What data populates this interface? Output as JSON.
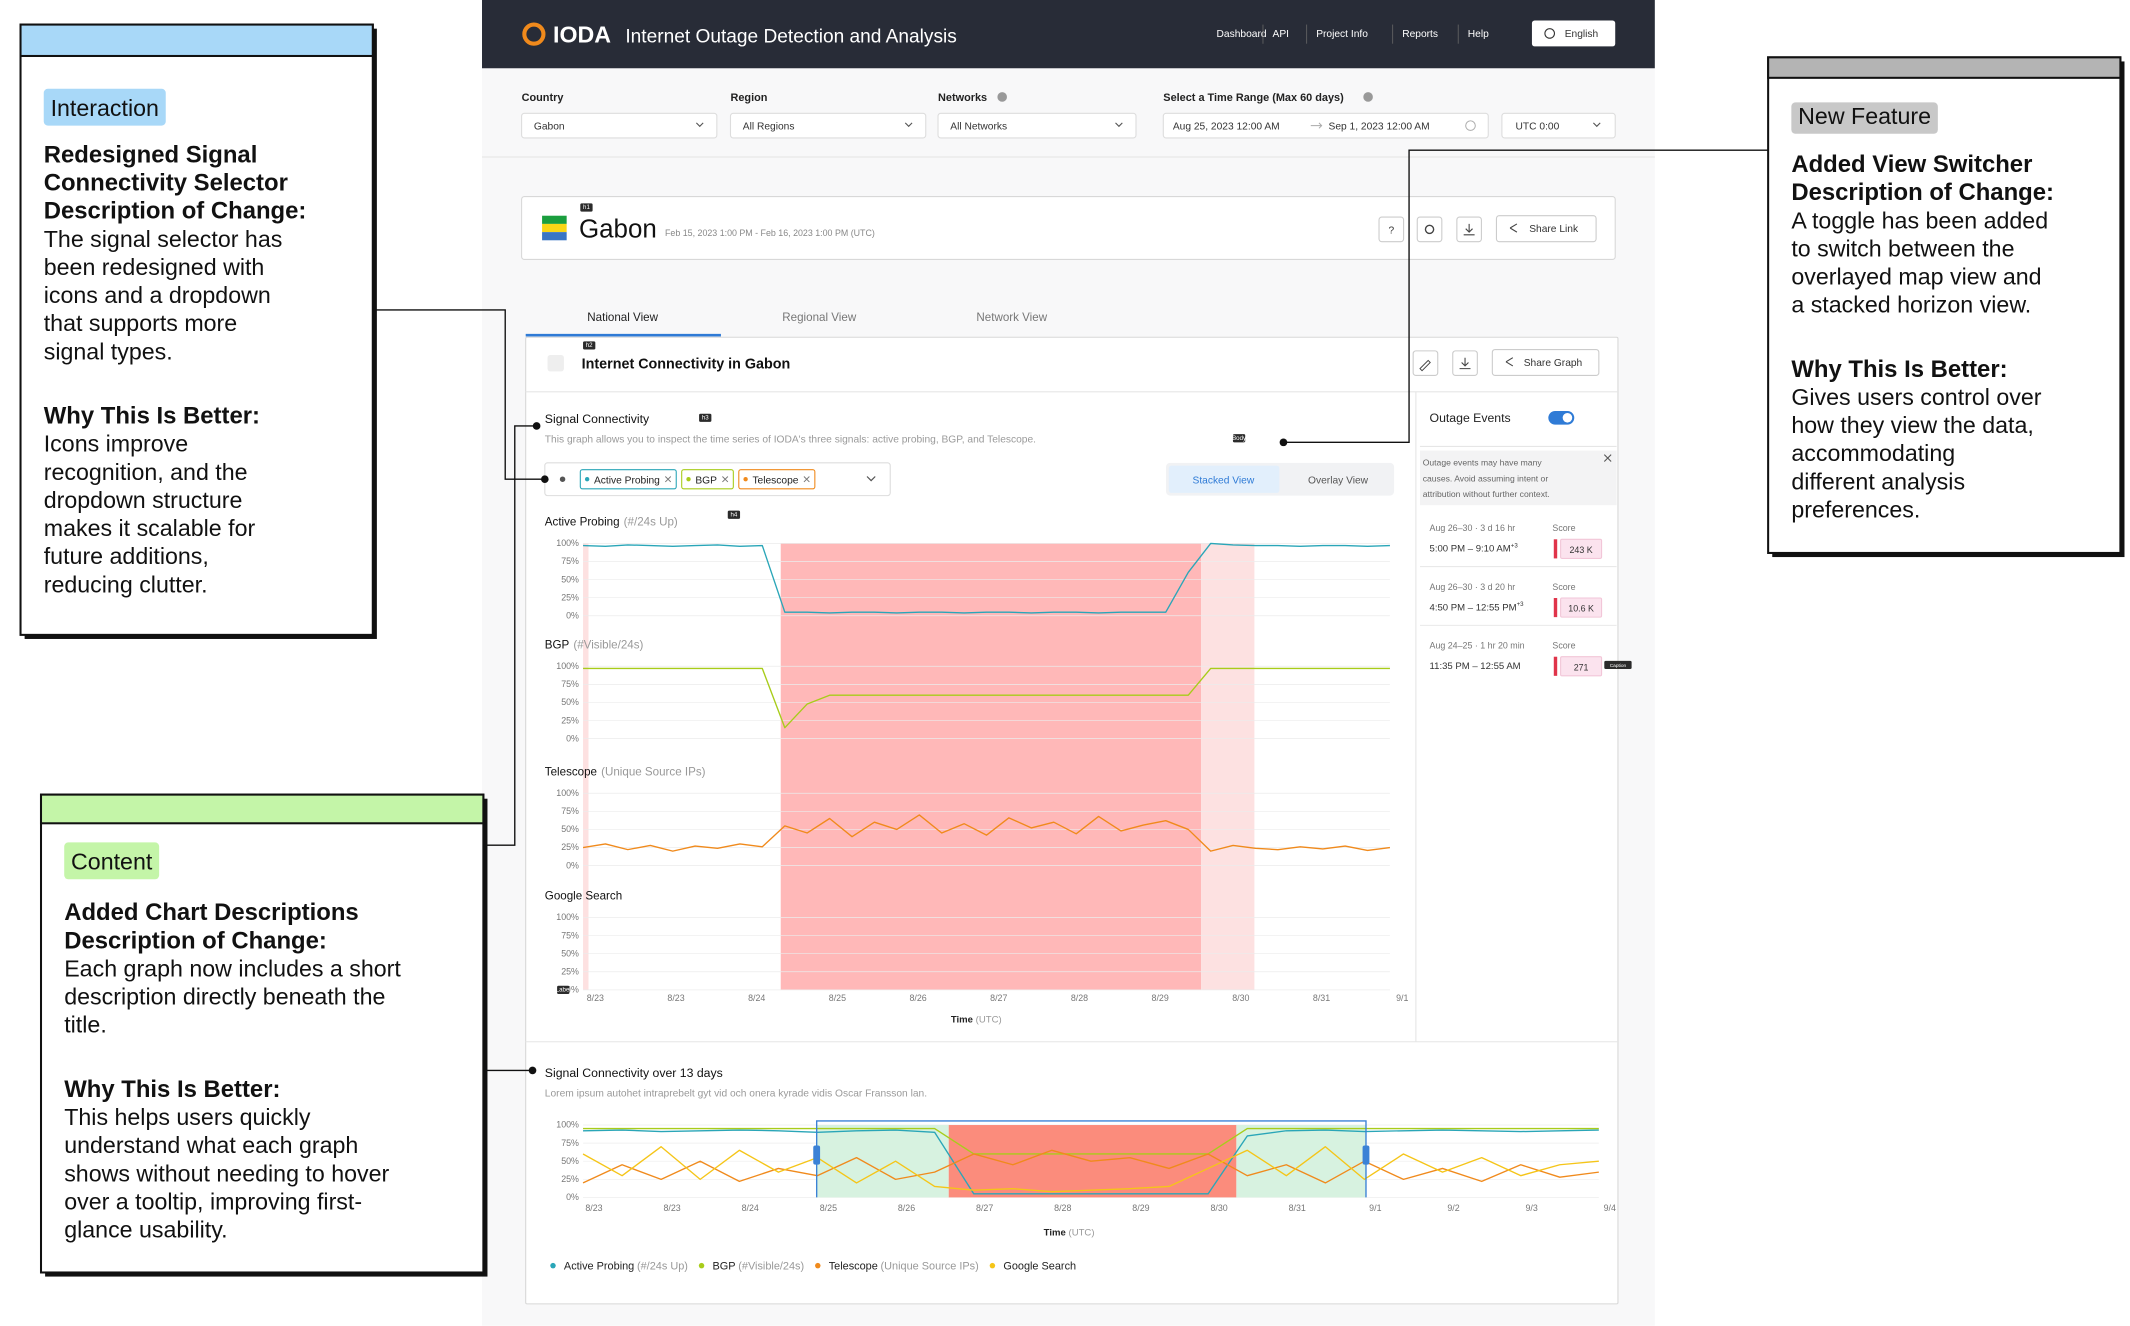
{
  "header": {
    "logo": "IODA",
    "title": "Internet Outage Detection and Analysis",
    "nav": [
      "Dashboard",
      "API",
      "Project Info",
      "Reports",
      "Help"
    ],
    "language": "English"
  },
  "filters": [
    {
      "label": "Country",
      "value": "Gabon"
    },
    {
      "label": "Region",
      "value": "All Regions"
    },
    {
      "label": "Networks",
      "value": "All Networks"
    }
  ],
  "time_range": {
    "label": "Select a Time Range (Max 60 days)",
    "start": "Aug 25, 2023 12:00 AM",
    "end": "Sep 1, 2023 12:00 AM",
    "timezone": "UTC 0:00"
  },
  "country_card": {
    "tag": "h1",
    "name": "Gabon",
    "range": "Feb 15, 2023 1:00 PM - Feb 16, 2023 1:00 PM (UTC)",
    "help": "?",
    "share": "Share Link"
  },
  "tabs": [
    "National View",
    "Regional View",
    "Network View"
  ],
  "panel": {
    "tag": "h2",
    "title": "Internet Connectivity in Gabon",
    "share": "Share Graph"
  },
  "signal": {
    "title": "Signal Connectivity",
    "tag": "h3",
    "description": "This graph allows you to inspect the time series of IODA's three signals: active probing, BGP, and Telescope.",
    "body_tag": "Body",
    "chips": [
      "Active Probing",
      "BGP",
      "Telescope"
    ],
    "views": [
      "Stacked View",
      "Overlay View"
    ]
  },
  "main_chart": {
    "type": "line",
    "title_tag": "h4",
    "axis_tag": "Label",
    "x_labels": [
      "8/23",
      "8/23",
      "8/24",
      "8/25",
      "8/26",
      "8/27",
      "8/28",
      "8/29",
      "8/30",
      "8/31",
      "9/1"
    ],
    "xlabel": "Time",
    "xunit": "(UTC)",
    "ylim": [
      0,
      100
    ],
    "yticks": [
      {
        "value": 100,
        "label": "100%"
      },
      {
        "value": 75,
        "label": "75%"
      },
      {
        "value": 50,
        "label": "50%"
      },
      {
        "value": 25,
        "label": "25%"
      },
      {
        "value": 0,
        "label": "0%"
      }
    ],
    "bands": [
      {
        "start": 2.45,
        "end": 7.66,
        "color": "#ffb8b8"
      },
      {
        "start": 7.66,
        "end": 8.32,
        "color": "#fde1e1"
      }
    ],
    "subplots": [
      {
        "name": "Active Probing",
        "unit": "(#/24s Up)",
        "color": "#2aa6b8",
        "values": [
          97,
          96,
          98,
          97,
          96,
          97,
          98,
          96,
          97,
          5,
          5,
          4,
          5,
          5,
          4,
          5,
          5,
          4,
          5,
          5,
          4,
          5,
          5,
          4,
          5,
          5,
          5,
          60,
          100,
          98,
          97,
          97,
          96,
          97,
          97,
          96,
          97
        ]
      },
      {
        "name": "BGP",
        "unit": "(#Visible/24s)",
        "color": "#a8cc1a",
        "values": [
          97,
          97,
          97,
          97,
          97,
          97,
          97,
          97,
          97,
          15,
          48,
          60,
          60,
          60,
          60,
          60,
          60,
          60,
          60,
          60,
          60,
          60,
          60,
          60,
          60,
          60,
          60,
          60,
          97,
          97,
          97,
          97,
          97,
          97,
          97,
          97,
          97
        ]
      },
      {
        "name": "Telescope",
        "unit": "(Unique Source IPs)",
        "color": "#f08a1c",
        "values": [
          25,
          30,
          22,
          28,
          20,
          27,
          24,
          30,
          26,
          55,
          45,
          65,
          40,
          60,
          50,
          70,
          45,
          58,
          42,
          66,
          52,
          60,
          44,
          68,
          48,
          56,
          62,
          50,
          20,
          28,
          24,
          22,
          26,
          23,
          27,
          21,
          25
        ]
      },
      {
        "name": "Google Search",
        "color": "#f5c518"
      }
    ]
  },
  "outage_events": {
    "title": "Outage Events",
    "notice": [
      "Outage events may have many",
      "causes. Avoid assuming intent or",
      "attribution without further context."
    ],
    "score_label": "Score",
    "caption_tag": "Caption",
    "events": [
      {
        "range": "Aug 26–30 · 3 d 16 hr",
        "time": "5:00 PM – 9:10 AM",
        "sup": "+3",
        "score": "243 K"
      },
      {
        "range": "Aug 26–30 · 3 d 20 hr",
        "time": "4:50 PM – 12:55 PM",
        "sup": "+3",
        "score": "10.6 K"
      },
      {
        "range": "Aug 24–25 · 1 hr 20 min",
        "time": "11:35 PM – 12:55 AM",
        "score": "271"
      }
    ]
  },
  "overview": {
    "type": "line",
    "title": "Signal Connectivity over 13 days",
    "description": "Lorem ipsum autohet intraprebelt gyt vid och onera kyrade vidis Oscar Fransson lan.",
    "x_labels": [
      "8/23",
      "8/23",
      "8/24",
      "8/25",
      "8/26",
      "8/27",
      "8/28",
      "8/29",
      "8/30",
      "8/31",
      "9/1",
      "9/2",
      "9/3",
      "9/4"
    ],
    "xlabel": "Time",
    "xunit": "(UTC)",
    "ylim": [
      0,
      100
    ],
    "yticks": [
      {
        "value": 100,
        "label": "100%"
      },
      {
        "value": 75,
        "label": "75%"
      },
      {
        "value": 50,
        "label": "50%"
      },
      {
        "value": 25,
        "label": "25%"
      },
      {
        "value": 0,
        "label": "0%"
      }
    ],
    "outage": {
      "start": 4.68,
      "end": 8.36,
      "color": "#fb8c7c"
    },
    "selection": {
      "start": 2.99,
      "end": 10.02,
      "color": "#3b82d6"
    },
    "series": [
      {
        "name": "Active Probing",
        "unit": "(#/24s Up)",
        "color": "#2aa6b8",
        "values": [
          92,
          93,
          91,
          92,
          93,
          92,
          90,
          92,
          93,
          90,
          5,
          5,
          5,
          5,
          5,
          5,
          5,
          85,
          92,
          93,
          91,
          92,
          93,
          92,
          91,
          92,
          93
        ]
      },
      {
        "name": "BGP",
        "unit": "(#Visible/24s)",
        "color": "#a8cc1a",
        "values": [
          95,
          95,
          95,
          95,
          95,
          95,
          95,
          95,
          95,
          95,
          60,
          60,
          60,
          60,
          60,
          60,
          60,
          95,
          95,
          95,
          95,
          95,
          95,
          95,
          95,
          95,
          95
        ]
      },
      {
        "name": "Telescope",
        "unit": "(Unique Source IPs)",
        "color": "#f08a1c",
        "values": [
          20,
          45,
          25,
          50,
          22,
          40,
          30,
          55,
          25,
          35,
          60,
          45,
          65,
          50,
          55,
          40,
          60,
          30,
          45,
          20,
          50,
          25,
          40,
          22,
          45,
          28,
          35
        ]
      },
      {
        "name": "Google Search",
        "color": "#f5c518",
        "values": [
          60,
          30,
          70,
          25,
          65,
          35,
          55,
          20,
          50,
          15,
          10,
          12,
          8,
          10,
          12,
          15,
          40,
          65,
          30,
          70,
          25,
          60,
          35,
          55,
          30,
          45,
          50
        ]
      }
    ]
  },
  "annotations": [
    {
      "tag": "Interaction",
      "title": [
        "Redesigned Signal",
        "Connectivity Selector"
      ],
      "description_heading": "Description of Change:",
      "description": [
        "The signal selector has",
        "been redesigned with",
        "icons and a dropdown",
        "that supports more",
        "signal types."
      ],
      "why_heading": "Why This Is Better:",
      "why": [
        "Icons improve",
        "recognition, and the",
        "dropdown structure",
        "makes it scalable for",
        "future additions,",
        "reducing clutter."
      ]
    },
    {
      "tag": "Content",
      "title": [
        "Added Chart Descriptions"
      ],
      "description_heading": "Description of Change:",
      "description": [
        "Each graph now includes a short",
        "description directly beneath the",
        "title."
      ],
      "why_heading": "Why This Is Better:",
      "why": [
        "This helps users quickly",
        "understand what each graph",
        "shows without needing to hover",
        "over a tooltip, improving first-",
        "glance usability."
      ]
    },
    {
      "tag": "New Feature",
      "title": [
        "Added View Switcher"
      ],
      "description_heading": "Description of Change:",
      "description": [
        " A toggle has been added",
        "to switch between the",
        "overlayed map view and",
        "a stacked horizon view."
      ],
      "why_heading": "Why This Is Better:",
      "why": [
        "Gives users control over",
        "how they view the data,",
        "accommodating",
        "different analysis",
        "preferences."
      ]
    }
  ]
}
